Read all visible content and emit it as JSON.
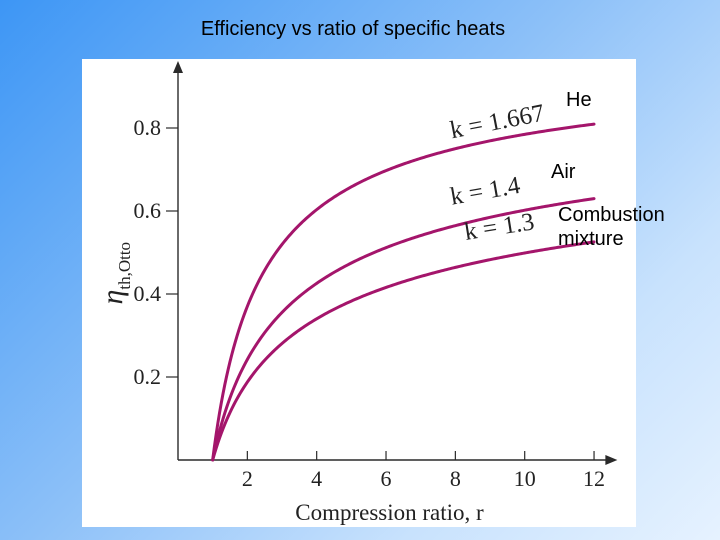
{
  "slide": {
    "title": "Efficiency vs ratio of specific heats",
    "labels": {
      "he": "He",
      "air": "Air",
      "combustion": "Combustion mixture"
    }
  },
  "chart_data": {
    "type": "line",
    "title": "",
    "xlabel": "Compression ratio, r",
    "ylabel": "η th,Otto",
    "xlim": [
      0,
      12.5
    ],
    "ylim": [
      0,
      0.9
    ],
    "x_ticks": [
      2,
      4,
      6,
      8,
      10,
      12
    ],
    "y_ticks": [
      0.2,
      0.4,
      0.6,
      0.8
    ],
    "grid": false,
    "line_color": "#a4156b",
    "series": [
      {
        "name": "k = 1.667",
        "gas": "He",
        "k": 1.667,
        "x": [
          1,
          2,
          4,
          6,
          8,
          10,
          12
        ],
        "y": [
          0,
          0.37,
          0.6,
          0.7,
          0.75,
          0.79,
          0.81
        ]
      },
      {
        "name": "k = 1.4",
        "gas": "Air",
        "k": 1.4,
        "x": [
          1,
          2,
          4,
          6,
          8,
          10,
          12
        ],
        "y": [
          0,
          0.24,
          0.43,
          0.51,
          0.56,
          0.6,
          0.63
        ]
      },
      {
        "name": "k = 1.3",
        "gas": "Combustion mixture",
        "k": 1.3,
        "x": [
          1,
          2,
          4,
          6,
          8,
          10,
          12
        ],
        "y": [
          0,
          0.19,
          0.34,
          0.42,
          0.46,
          0.5,
          0.53
        ]
      }
    ]
  }
}
